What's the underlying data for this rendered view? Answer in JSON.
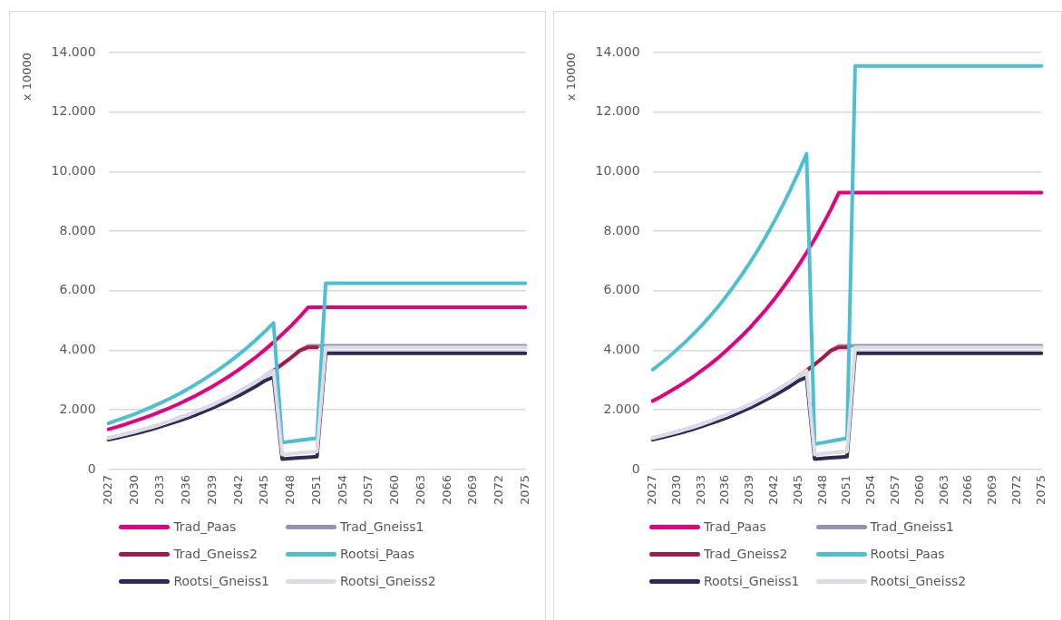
{
  "chart_data": [
    {
      "type": "line",
      "ylabel": "x 10000",
      "legend": "bottom",
      "grid": "y",
      "marker": "none",
      "line_style": "solid",
      "categories": [
        "2027",
        null,
        null,
        "2030",
        null,
        null,
        "2033",
        null,
        null,
        "2036",
        null,
        null,
        "2039",
        null,
        null,
        "2042",
        null,
        null,
        "2045",
        null,
        null,
        "2048",
        null,
        null,
        "2051",
        null,
        null,
        "2054",
        null,
        null,
        "2057",
        null,
        null,
        "2060",
        null,
        null,
        "2063",
        null,
        null,
        "2066",
        null,
        null,
        "2069",
        null,
        null,
        "2072",
        null,
        null,
        "2075"
      ],
      "ylim": [
        0,
        14000
      ],
      "yticks": [
        {
          "value": 0,
          "label": "0"
        },
        {
          "value": 2000,
          "label": "2.000"
        },
        {
          "value": 4000,
          "label": "4.000"
        },
        {
          "value": 6000,
          "label": "6.000"
        },
        {
          "value": 8000,
          "label": "8.000"
        },
        {
          "value": 10000,
          "label": "10.000"
        },
        {
          "value": 12000,
          "label": "12.000"
        },
        {
          "value": 14000,
          "label": "14.000"
        }
      ],
      "series": [
        {
          "name": "Trad_Paas",
          "color": "#e6007e",
          "values": [
            1350,
            1430,
            1520,
            1620,
            1720,
            1830,
            1940,
            2060,
            2190,
            2330,
            2470,
            2630,
            2790,
            2970,
            3150,
            3350,
            3560,
            3780,
            4020,
            4270,
            4540,
            4820,
            5120,
            5450,
            5450,
            5450,
            5450,
            5450,
            5450,
            5450,
            5450,
            5450,
            5450,
            5450,
            5450,
            5450,
            5450,
            5450,
            5450,
            5450,
            5450,
            5450,
            5450,
            5450,
            5450,
            5450,
            5450,
            5450,
            5450
          ]
        },
        {
          "name": "Trad_Gneiss1",
          "color": "#9093b3",
          "values": [
            1050,
            1120,
            1190,
            1260,
            1340,
            1420,
            1510,
            1610,
            1710,
            1810,
            1930,
            2050,
            2170,
            2310,
            2450,
            2610,
            2770,
            2940,
            3130,
            3320,
            3530,
            3750,
            3990,
            4150,
            4150,
            4150,
            4150,
            4150,
            4150,
            4150,
            4150,
            4150,
            4150,
            4150,
            4150,
            4150,
            4150,
            4150,
            4150,
            4150,
            4150,
            4150,
            4150,
            4150,
            4150,
            4150,
            4150,
            4150,
            4150
          ]
        },
        {
          "name": "Trad_Gneiss2",
          "color": "#a8174f",
          "values": [
            null,
            null,
            null,
            null,
            null,
            null,
            null,
            null,
            null,
            null,
            null,
            null,
            null,
            null,
            null,
            null,
            null,
            null,
            3130,
            3320,
            3530,
            3750,
            3990,
            4100,
            4100,
            null,
            null,
            null,
            null,
            null,
            null,
            null,
            null,
            null,
            null,
            null,
            null,
            null,
            null,
            null,
            null,
            null,
            null,
            null,
            null,
            null,
            null,
            null,
            null
          ]
        },
        {
          "name": "Rootsi_Paas",
          "color": "#4bbfd3",
          "values": [
            1550,
            1650,
            1750,
            1860,
            1980,
            2100,
            2230,
            2370,
            2520,
            2680,
            2850,
            3030,
            3220,
            3420,
            3630,
            3860,
            4100,
            4360,
            4630,
            4920,
            900,
            940,
            980,
            1020,
            1050,
            6250,
            6250,
            6250,
            6250,
            6250,
            6250,
            6250,
            6250,
            6250,
            6250,
            6250,
            6250,
            6250,
            6250,
            6250,
            6250,
            6250,
            6250,
            6250,
            6250,
            6250,
            6250,
            6250,
            6250
          ]
        },
        {
          "name": "Rootsi_Gneiss1",
          "color": "#2d2958",
          "values": [
            1000,
            1060,
            1130,
            1200,
            1270,
            1350,
            1440,
            1530,
            1620,
            1720,
            1830,
            1950,
            2070,
            2200,
            2340,
            2480,
            2640,
            2800,
            2980,
            3100,
            350,
            370,
            390,
            410,
            430,
            3900,
            3900,
            3900,
            3900,
            3900,
            3900,
            3900,
            3900,
            3900,
            3900,
            3900,
            3900,
            3900,
            3900,
            3900,
            3900,
            3900,
            3900,
            3900,
            3900,
            3900,
            3900,
            3900,
            3900
          ]
        },
        {
          "name": "Rootsi_Gneiss2",
          "color": "#dcdbe6",
          "values": [
            1050,
            1120,
            1190,
            1260,
            1340,
            1420,
            1510,
            1610,
            1710,
            1810,
            1930,
            2050,
            2170,
            2310,
            2450,
            2610,
            2770,
            2940,
            3130,
            3320,
            500,
            530,
            560,
            580,
            600,
            4100,
            4100,
            4100,
            4100,
            4100,
            4100,
            4100,
            4100,
            4100,
            4100,
            4100,
            4100,
            4100,
            4100,
            4100,
            4100,
            4100,
            4100,
            4100,
            4100,
            4100,
            4100,
            4100,
            4100
          ]
        }
      ]
    },
    {
      "type": "line",
      "ylabel": "x 10000",
      "legend": "bottom",
      "grid": "y",
      "marker": "none",
      "line_style": "solid",
      "categories": [
        "2027",
        null,
        null,
        "2030",
        null,
        null,
        "2033",
        null,
        null,
        "2036",
        null,
        null,
        "2039",
        null,
        null,
        "2042",
        null,
        null,
        "2045",
        null,
        null,
        "2048",
        null,
        null,
        "2051",
        null,
        null,
        "2054",
        null,
        null,
        "2057",
        null,
        null,
        "2060",
        null,
        null,
        "2063",
        null,
        null,
        "2066",
        null,
        null,
        "2069",
        null,
        null,
        "2072",
        null,
        null,
        "2075"
      ],
      "ylim": [
        0,
        14000
      ],
      "yticks": [
        {
          "value": 0,
          "label": "0"
        },
        {
          "value": 2000,
          "label": "2.000"
        },
        {
          "value": 4000,
          "label": "4.000"
        },
        {
          "value": 6000,
          "label": "6.000"
        },
        {
          "value": 8000,
          "label": "8.000"
        },
        {
          "value": 10000,
          "label": "10.000"
        },
        {
          "value": 12000,
          "label": "12.000"
        },
        {
          "value": 14000,
          "label": "14.000"
        }
      ],
      "series": [
        {
          "name": "Trad_Paas",
          "color": "#e6007e",
          "values": [
            2300,
            2440,
            2600,
            2760,
            2930,
            3110,
            3310,
            3510,
            3730,
            3970,
            4220,
            4480,
            4760,
            5060,
            5370,
            5710,
            6070,
            6450,
            6850,
            7280,
            7730,
            8220,
            8730,
            9300,
            9300,
            9300,
            9300,
            9300,
            9300,
            9300,
            9300,
            9300,
            9300,
            9300,
            9300,
            9300,
            9300,
            9300,
            9300,
            9300,
            9300,
            9300,
            9300,
            9300,
            9300,
            9300,
            9300,
            9300,
            9300
          ]
        },
        {
          "name": "Trad_Gneiss1",
          "color": "#9093b3",
          "values": [
            1050,
            1120,
            1190,
            1260,
            1340,
            1420,
            1510,
            1610,
            1710,
            1810,
            1930,
            2050,
            2170,
            2310,
            2450,
            2610,
            2770,
            2940,
            3130,
            3320,
            3530,
            3750,
            3990,
            4150,
            4150,
            4150,
            4150,
            4150,
            4150,
            4150,
            4150,
            4150,
            4150,
            4150,
            4150,
            4150,
            4150,
            4150,
            4150,
            4150,
            4150,
            4150,
            4150,
            4150,
            4150,
            4150,
            4150,
            4150,
            4150
          ]
        },
        {
          "name": "Trad_Gneiss2",
          "color": "#a8174f",
          "values": [
            null,
            null,
            null,
            null,
            null,
            null,
            null,
            null,
            null,
            null,
            null,
            null,
            null,
            null,
            null,
            null,
            null,
            null,
            3130,
            3320,
            3530,
            3750,
            3990,
            4100,
            4100,
            null,
            null,
            null,
            null,
            null,
            null,
            null,
            null,
            null,
            null,
            null,
            null,
            null,
            null,
            null,
            null,
            null,
            null,
            null,
            null,
            null,
            null,
            null,
            null
          ]
        },
        {
          "name": "Rootsi_Paas",
          "color": "#4bbfd3",
          "values": [
            3350,
            3560,
            3780,
            4020,
            4270,
            4540,
            4820,
            5120,
            5440,
            5780,
            6150,
            6530,
            6940,
            7370,
            7830,
            8320,
            8840,
            9390,
            9980,
            10600,
            850,
            900,
            950,
            1000,
            1050,
            13550,
            13550,
            13550,
            13550,
            13550,
            13550,
            13550,
            13550,
            13550,
            13550,
            13550,
            13550,
            13550,
            13550,
            13550,
            13550,
            13550,
            13550,
            13550,
            13550,
            13550,
            13550,
            13550,
            13550
          ]
        },
        {
          "name": "Rootsi_Gneiss1",
          "color": "#2d2958",
          "values": [
            1000,
            1060,
            1130,
            1200,
            1270,
            1350,
            1440,
            1530,
            1620,
            1720,
            1830,
            1950,
            2070,
            2200,
            2340,
            2480,
            2640,
            2800,
            2980,
            3100,
            350,
            370,
            390,
            410,
            430,
            3900,
            3900,
            3900,
            3900,
            3900,
            3900,
            3900,
            3900,
            3900,
            3900,
            3900,
            3900,
            3900,
            3900,
            3900,
            3900,
            3900,
            3900,
            3900,
            3900,
            3900,
            3900,
            3900,
            3900
          ]
        },
        {
          "name": "Rootsi_Gneiss2",
          "color": "#dcdbe6",
          "values": [
            1050,
            1120,
            1190,
            1260,
            1340,
            1420,
            1510,
            1610,
            1710,
            1810,
            1930,
            2050,
            2170,
            2310,
            2450,
            2610,
            2770,
            2940,
            3130,
            3320,
            500,
            530,
            560,
            580,
            600,
            4100,
            4100,
            4100,
            4100,
            4100,
            4100,
            4100,
            4100,
            4100,
            4100,
            4100,
            4100,
            4100,
            4100,
            4100,
            4100,
            4100,
            4100,
            4100,
            4100,
            4100,
            4100,
            4100,
            4100
          ]
        }
      ]
    }
  ]
}
